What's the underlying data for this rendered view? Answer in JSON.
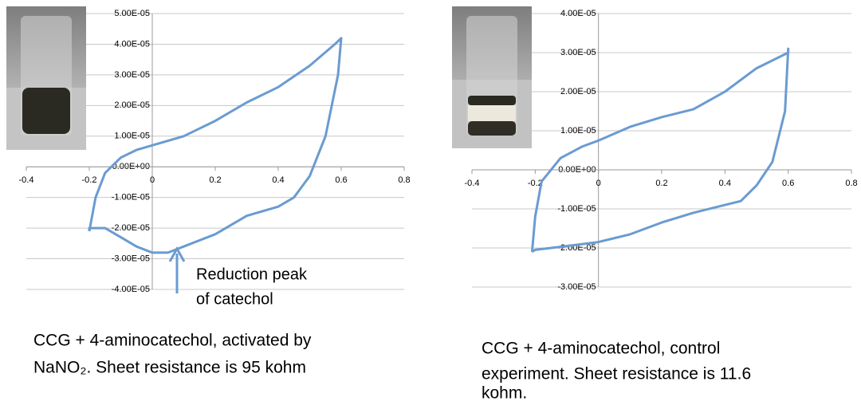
{
  "chart_data": [
    {
      "type": "line",
      "color": "#6a9bd1",
      "x": [
        -0.2,
        -0.18,
        -0.15,
        -0.1,
        -0.05,
        0,
        0.1,
        0.2,
        0.3,
        0.4,
        0.5,
        0.58,
        0.6,
        0.59,
        0.55,
        0.5,
        0.45,
        0.4,
        0.3,
        0.2,
        0.1,
        0.05,
        0,
        -0.05,
        -0.1,
        -0.15,
        -0.2,
        -0.2
      ],
      "values": [
        -2.1e-05,
        -1e-05,
        -2e-06,
        3e-06,
        5.5e-06,
        7e-06,
        1e-05,
        1.5e-05,
        2.1e-05,
        2.6e-05,
        3.3e-05,
        4e-05,
        4.2e-05,
        3e-05,
        1e-05,
        -3e-06,
        -1e-05,
        -1.3e-05,
        -1.6e-05,
        -2.2e-05,
        -2.6e-05,
        -2.8e-05,
        -2.8e-05,
        -2.6e-05,
        -2.3e-05,
        -2e-05,
        -2e-05,
        -2.1e-05
      ],
      "xlim": [
        -0.4,
        0.8
      ],
      "xticks": [
        -0.4,
        -0.2,
        0,
        0.2,
        0.4,
        0.6,
        0.8
      ],
      "ylim": [
        -4e-05,
        5e-05
      ],
      "yticks": [
        {
          "value": -4e-05,
          "label": "-4.00E-05"
        },
        {
          "value": -3e-05,
          "label": "-3.00E-05"
        },
        {
          "value": -2e-05,
          "label": "-2.00E-05"
        },
        {
          "value": -1e-05,
          "label": "-1.00E-05"
        },
        {
          "value": 0,
          "label": "0.00E+00"
        },
        {
          "value": 1e-05,
          "label": "1.00E-05"
        },
        {
          "value": 2e-05,
          "label": "2.00E-05"
        },
        {
          "value": 3e-05,
          "label": "3.00E-05"
        },
        {
          "value": 4e-05,
          "label": "4.00E-05"
        },
        {
          "value": 5e-05,
          "label": "5.00E-05"
        }
      ],
      "grid": true,
      "annotation": [
        "Reduction peak",
        "of catechol"
      ],
      "caption": [
        "CCG + 4-aminocatechol, activated by",
        "NaNO₂. Sheet resistance is 95 kohm"
      ]
    },
    {
      "type": "line",
      "color": "#6a9bd1",
      "x": [
        -0.21,
        -0.2,
        -0.18,
        -0.12,
        -0.05,
        0,
        0.1,
        0.2,
        0.3,
        0.4,
        0.5,
        0.6,
        0.6,
        0.59,
        0.55,
        0.5,
        0.45,
        0.4,
        0.3,
        0.2,
        0.1,
        0,
        -0.1,
        -0.2,
        -0.21
      ],
      "values": [
        -2.1e-05,
        -1.2e-05,
        -3e-06,
        3e-06,
        6e-06,
        7.5e-06,
        1.1e-05,
        1.35e-05,
        1.55e-05,
        2e-05,
        2.6e-05,
        3e-05,
        3.1e-05,
        1.5e-05,
        2e-06,
        -4e-06,
        -8e-06,
        -9e-06,
        -1.1e-05,
        -1.35e-05,
        -1.65e-05,
        -1.85e-05,
        -1.95e-05,
        -2.05e-05,
        -2.1e-05
      ],
      "xlim": [
        -0.4,
        0.8
      ],
      "xticks": [
        -0.4,
        -0.2,
        0,
        0.2,
        0.4,
        0.6,
        0.8
      ],
      "ylim": [
        -3e-05,
        4e-05
      ],
      "yticks": [
        {
          "value": -3e-05,
          "label": "-3.00E-05"
        },
        {
          "value": -2e-05,
          "label": "-2.00E-05"
        },
        {
          "value": -1e-05,
          "label": "-1.00E-05"
        },
        {
          "value": 0,
          "label": "0.00E+00"
        },
        {
          "value": 1e-05,
          "label": "1.00E-05"
        },
        {
          "value": 2e-05,
          "label": "2.00E-05"
        },
        {
          "value": 3e-05,
          "label": "3.00E-05"
        },
        {
          "value": 4e-05,
          "label": "4.00E-05"
        }
      ],
      "grid": true,
      "caption": [
        "CCG + 4-aminocatechol, control",
        "experiment. Sheet resistance is 11.6",
        "kohm."
      ]
    }
  ]
}
